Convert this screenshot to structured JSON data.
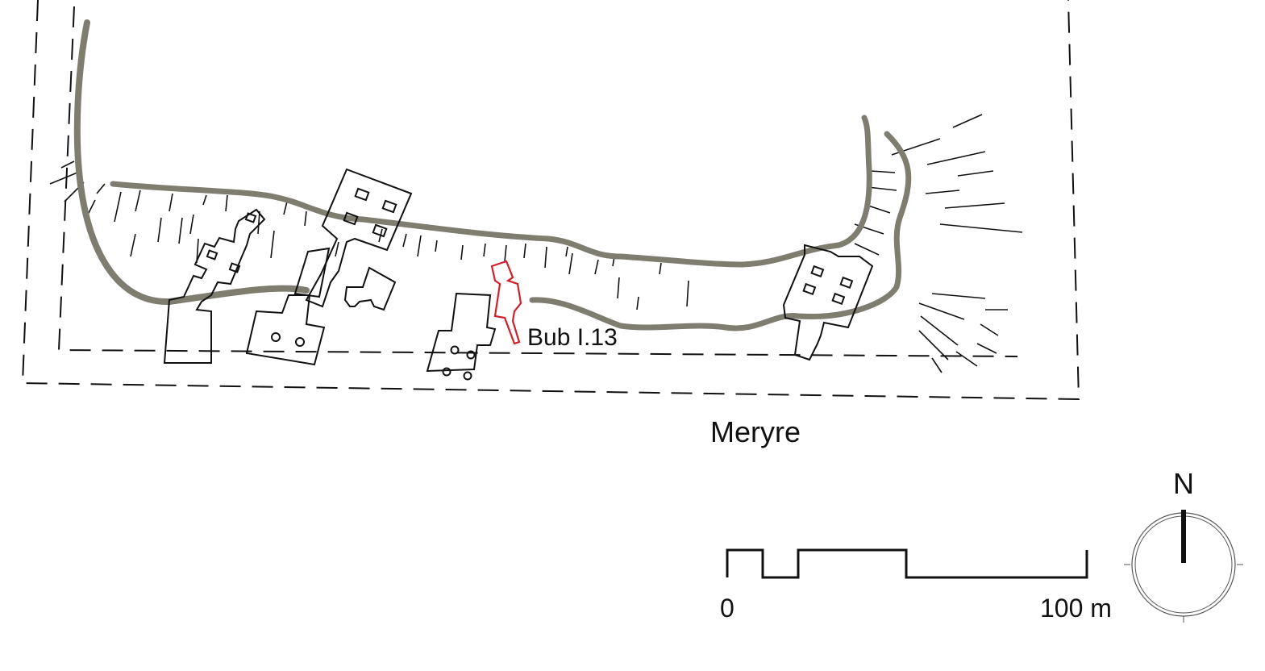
{
  "map": {
    "area_label": "Meryre",
    "highlighted_tomb_label": "Bub I.13",
    "colors": {
      "outline": "#111111",
      "wadi_edge": "#7f7d70",
      "highlight": "#d0202a"
    }
  },
  "scale_bar": {
    "start_label": "0",
    "end_label": "100 m",
    "length_m": 100
  },
  "north_arrow": {
    "letter": "N",
    "icon": "compass-north-arrow"
  }
}
